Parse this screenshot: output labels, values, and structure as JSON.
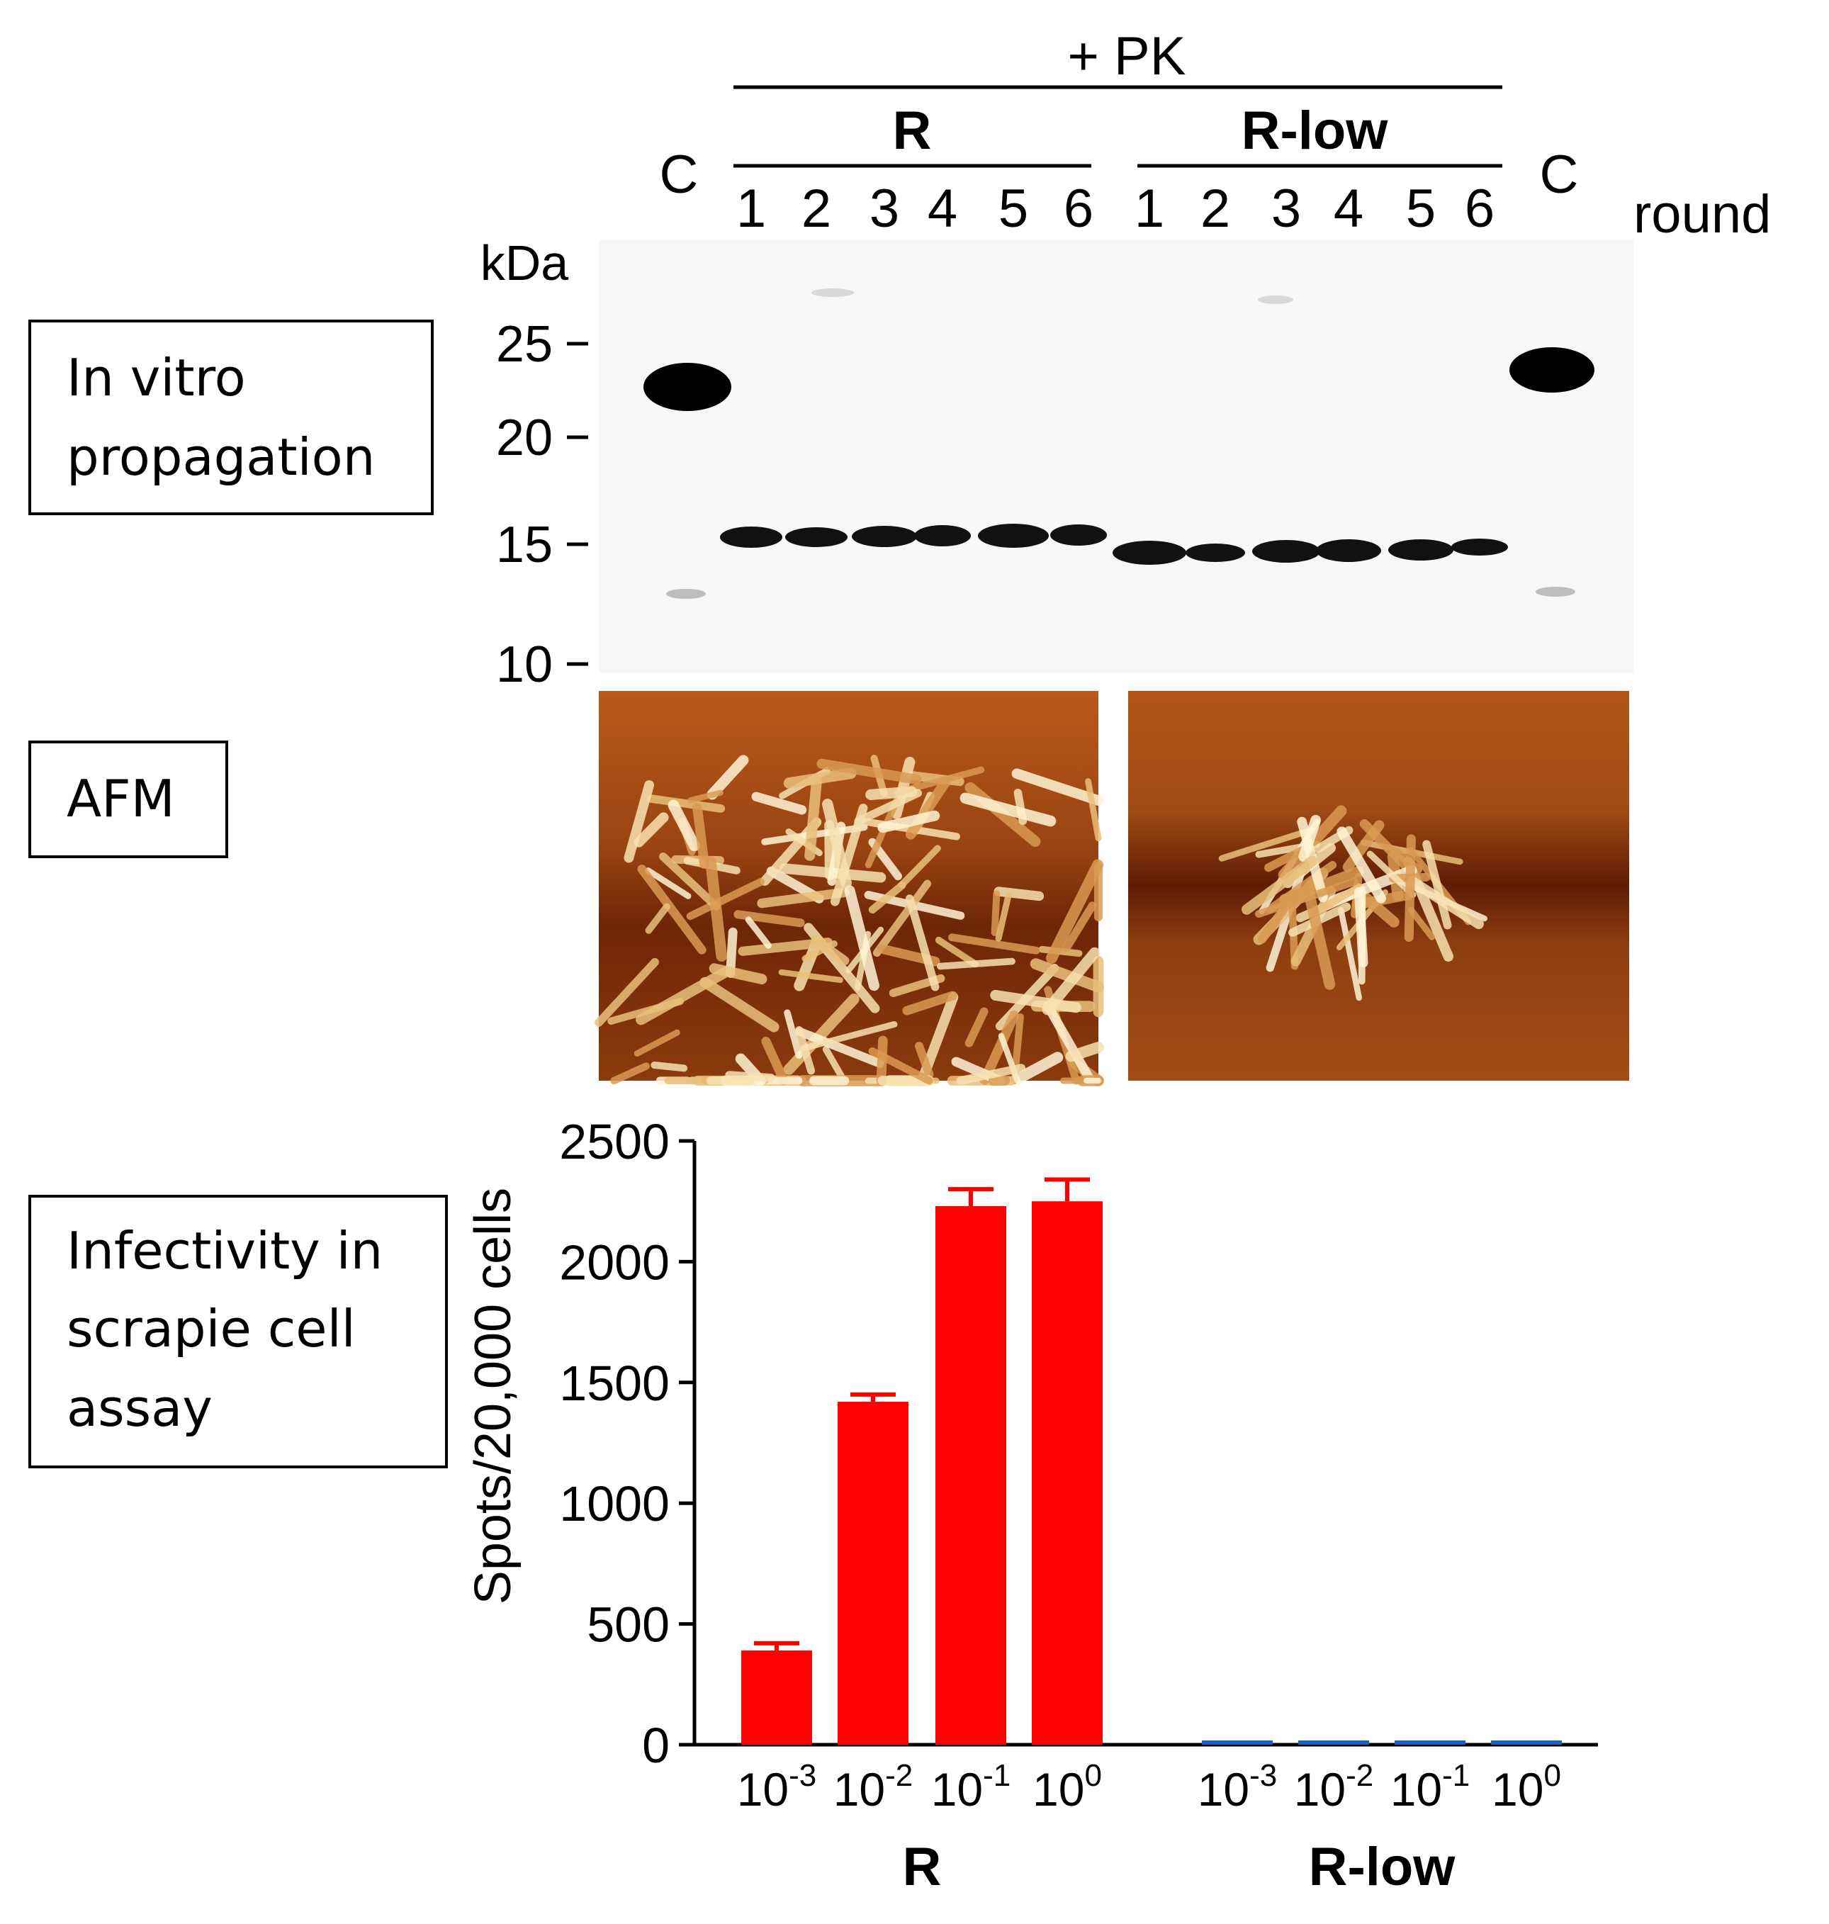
{
  "row_labels": {
    "in_vitro": [
      "In vitro",
      "propagation"
    ],
    "afm": "AFM",
    "infectivity": [
      "Infectivity in",
      "scrapie cell",
      "assay"
    ]
  },
  "blot": {
    "treatment": "+ PK",
    "groups": [
      "R",
      "R-low"
    ],
    "control_label": "C",
    "lanes_R": [
      "1",
      "2",
      "3",
      "4",
      "5",
      "6"
    ],
    "lanes_Rlow": [
      "1",
      "2",
      "3",
      "4",
      "5",
      "6"
    ],
    "round_label": "round",
    "unit": "kDa",
    "markers": [
      "25",
      "20",
      "15",
      "10"
    ]
  },
  "chart_data": {
    "type": "bar",
    "ylabel": "Spots/20,000 cells",
    "ylim": [
      0,
      2500
    ],
    "yticks": [
      "0",
      "500",
      "1000",
      "1500",
      "2000",
      "2500"
    ],
    "dilution_base": "10",
    "dilution_exponents": [
      "-3",
      "-2",
      "-1",
      "0"
    ],
    "groups": [
      {
        "name": "R",
        "color": "#ff0000",
        "values": [
          390,
          1420,
          2230,
          2250
        ],
        "errors": [
          30,
          30,
          70,
          90
        ]
      },
      {
        "name": "R-low",
        "color": "#1f5fbf",
        "values": [
          5,
          5,
          5,
          10
        ],
        "errors": [
          0,
          0,
          0,
          0
        ]
      }
    ]
  }
}
